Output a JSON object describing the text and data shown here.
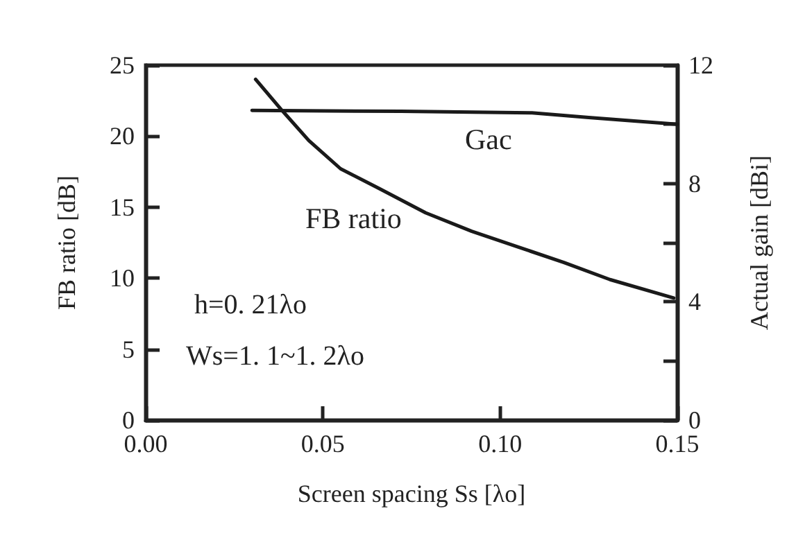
{
  "chart_data": {
    "type": "line",
    "xlabel": "Screen spacing Ss [λo]",
    "ylabel": "FB ratio [dB]",
    "y2label": "Actual gain [dBi]",
    "annotations": [
      "h=0. 21λo",
      "Ws=1. 1~1. 2λo"
    ],
    "series": [
      {
        "name": "FB ratio",
        "color": "#1a1a1a",
        "x": [
          0.031,
          0.0385,
          0.046,
          0.055,
          0.066,
          0.079,
          0.092,
          0.105,
          0.118,
          0.131,
          0.149
        ],
        "values": [
          24.0,
          21.8,
          19.7,
          17.7,
          16.3,
          14.6,
          13.3,
          12.2,
          11.1,
          9.9,
          8.6
        ]
      },
      {
        "name": "Gac",
        "color": "#1a1a1a",
        "axis": "y2",
        "x": [
          0.03,
          0.072,
          0.109,
          0.125,
          0.15
        ],
        "values": [
          10.47,
          10.44,
          10.39,
          10.23,
          10.0
        ]
      }
    ],
    "xlim": [
      0,
      0.15
    ],
    "xticks": [
      {
        "value": 0,
        "label": "0.00"
      },
      {
        "value": 0.05,
        "label": "0.05"
      },
      {
        "value": 0.1,
        "label": "0.10"
      },
      {
        "value": 0.15,
        "label": "0.15"
      }
    ],
    "ylim": [
      0,
      25
    ],
    "yticks": [
      0,
      5,
      10,
      15,
      20,
      25
    ],
    "y2lim": [
      0,
      12
    ],
    "y2ticks": [
      0,
      {
        "value": 2,
        "label": null
      },
      4,
      {
        "value": 6,
        "label": null
      },
      8,
      {
        "value": 10,
        "label": null
      },
      12
    ],
    "grid": false,
    "legend": false,
    "marker": "none",
    "line_style": "solid"
  }
}
